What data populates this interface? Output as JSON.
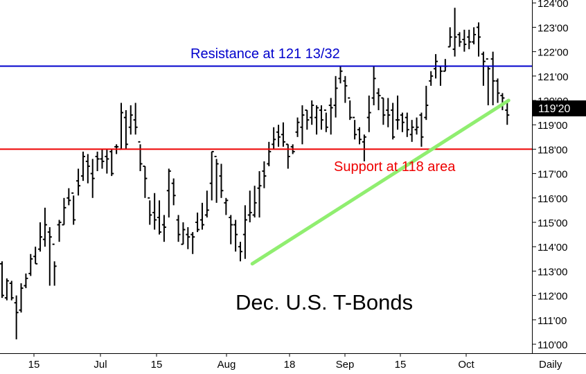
{
  "chart_data": {
    "type": "ohlc",
    "title": "Dec. U.S. T-Bonds",
    "frequency_label": "Daily",
    "last_price_label": "119'20",
    "last_price": 119.625,
    "y_tick_labels": [
      "110'00",
      "111'00",
      "112'00",
      "113'00",
      "114'00",
      "115'00",
      "116'00",
      "117'00",
      "118'00",
      "119'00",
      "120'00",
      "121'00",
      "122'00",
      "123'00",
      "124'00"
    ],
    "y_ticks": [
      110,
      111,
      112,
      113,
      114,
      115,
      116,
      117,
      118,
      119,
      120,
      121,
      122,
      123,
      124
    ],
    "ylim": [
      110,
      124
    ],
    "x_tick_labels": [
      "15",
      "Jul",
      "15",
      "Aug",
      "18",
      "Sep",
      "15",
      "Oct"
    ],
    "grid": false,
    "annotations": {
      "resistance": {
        "text": "Resistance at 121 13/32",
        "value": 121.40625,
        "color": "#0000cc"
      },
      "support": {
        "text": "Support at 118 area",
        "value": 118.0,
        "color": "#ee0000"
      },
      "trendline": {
        "color": "#90ee70",
        "from": 113.3,
        "to": 120.0
      }
    },
    "bars": [
      [
        113.3,
        112.0,
        113.4,
        111.9
      ],
      [
        111.9,
        112.6,
        112.7,
        111.8
      ],
      [
        112.5,
        111.9,
        112.6,
        111.8
      ],
      [
        111.7,
        111.3,
        112.0,
        110.2
      ],
      [
        111.4,
        112.3,
        112.5,
        111.3
      ],
      [
        112.4,
        112.7,
        112.9,
        112.3
      ],
      [
        112.9,
        113.5,
        113.7,
        112.8
      ],
      [
        113.6,
        113.3,
        114.0,
        113.3
      ],
      [
        113.9,
        114.4,
        115.0,
        113.8
      ],
      [
        114.3,
        114.9,
        115.6,
        114.0
      ],
      [
        114.6,
        114.4,
        114.8,
        112.4
      ],
      [
        114.1,
        113.2,
        113.4,
        112.4
      ],
      [
        114.9,
        115.0,
        115.1,
        114.2
      ],
      [
        114.9,
        115.6,
        116.0,
        114.9
      ],
      [
        116.0,
        115.9,
        116.4,
        115.7
      ],
      [
        116.2,
        115.1,
        116.1,
        114.9
      ],
      [
        116.7,
        116.5,
        117.2,
        116.1
      ],
      [
        116.9,
        117.7,
        117.9,
        116.7
      ],
      [
        117.5,
        117.3,
        117.8,
        116.6
      ],
      [
        117.0,
        116.8,
        117.6,
        116.0
      ],
      [
        117.7,
        117.6,
        117.9,
        117.1
      ],
      [
        117.6,
        117.5,
        118.0,
        117.2
      ],
      [
        117.7,
        117.6,
        118.0,
        117.0
      ],
      [
        117.9,
        117.0,
        118.0,
        116.9
      ],
      [
        118.1,
        118.1,
        118.2,
        117.8
      ],
      [
        118.0,
        119.5,
        119.9,
        118.0
      ],
      [
        119.3,
        118.2,
        119.6,
        118.0
      ],
      [
        118.9,
        119.4,
        119.8,
        118.6
      ],
      [
        119.2,
        118.9,
        119.9,
        118.6
      ],
      [
        118.3,
        117.4,
        118.2,
        117.1
      ],
      [
        117.3,
        116.8,
        117.3,
        116.0
      ],
      [
        116.0,
        115.3,
        115.9,
        114.9
      ],
      [
        115.4,
        115.1,
        116.2,
        114.7
      ],
      [
        115.2,
        114.6,
        115.9,
        114.5
      ],
      [
        114.9,
        114.8,
        115.3,
        114.2
      ],
      [
        116.3,
        117.1,
        117.2,
        115.2
      ],
      [
        116.6,
        116.1,
        116.8,
        115.7
      ],
      [
        115.1,
        114.5,
        115.3,
        114.2
      ],
      [
        114.1,
        114.7,
        115.0,
        114.1
      ],
      [
        114.5,
        114.4,
        114.8,
        113.9
      ],
      [
        114.5,
        114.4,
        114.6,
        113.7
      ],
      [
        115.0,
        114.7,
        115.4,
        114.6
      ],
      [
        115.1,
        114.9,
        115.8,
        114.7
      ],
      [
        115.3,
        115.5,
        116.3,
        115.2
      ],
      [
        116.6,
        117.9,
        117.9,
        115.9
      ],
      [
        117.7,
        117.4,
        117.6,
        115.8
      ],
      [
        116.9,
        116.3,
        117.4,
        116.0
      ],
      [
        115.8,
        115.9,
        116.0,
        115.3
      ],
      [
        115.2,
        114.9,
        115.3,
        114.1
      ],
      [
        114.9,
        114.5,
        115.1,
        113.8
      ],
      [
        114.0,
        113.8,
        114.2,
        113.4
      ],
      [
        114.5,
        115.1,
        115.7,
        113.5
      ],
      [
        115.3,
        115.4,
        116.3,
        115.0
      ],
      [
        115.3,
        115.8,
        116.5,
        115.2
      ],
      [
        116.4,
        116.5,
        117.1,
        115.2
      ],
      [
        117.1,
        116.9,
        117.5,
        116.4
      ],
      [
        117.4,
        117.9,
        118.3,
        117.3
      ],
      [
        118.2,
        118.4,
        118.9,
        118.0
      ],
      [
        118.7,
        118.5,
        119.0,
        118.1
      ],
      [
        118.6,
        118.3,
        119.1,
        118.1
      ],
      [
        118.2,
        117.7,
        118.2,
        117.2
      ],
      [
        118.1,
        117.9,
        118.2,
        117.8
      ],
      [
        118.7,
        119.1,
        119.3,
        118.5
      ],
      [
        118.9,
        119.4,
        119.8,
        118.2
      ],
      [
        119.6,
        119.2,
        119.6,
        118.8
      ],
      [
        119.3,
        119.8,
        120.0,
        119.0
      ],
      [
        119.3,
        119.7,
        119.8,
        118.6
      ],
      [
        119.6,
        119.2,
        119.8,
        118.8
      ],
      [
        119.6,
        118.9,
        119.5,
        118.7
      ],
      [
        119.8,
        119.7,
        120.1,
        118.6
      ],
      [
        119.8,
        120.5,
        121.0,
        119.3
      ],
      [
        120.9,
        121.2,
        121.4,
        120.7
      ],
      [
        120.8,
        120.6,
        121.0,
        119.9
      ],
      [
        120.1,
        119.3,
        120.0,
        119.2
      ],
      [
        119.3,
        118.6,
        119.2,
        118.4
      ],
      [
        118.8,
        118.4,
        118.9,
        118.2
      ],
      [
        118.3,
        118.5,
        118.6,
        117.5
      ],
      [
        119.3,
        119.5,
        120.2,
        118.7
      ],
      [
        120.1,
        120.9,
        121.4,
        119.8
      ],
      [
        120.3,
        120.2,
        120.5,
        119.6
      ],
      [
        120.1,
        119.4,
        120.1,
        119.0
      ],
      [
        119.6,
        119.4,
        120.1,
        118.9
      ],
      [
        119.6,
        118.5,
        119.9,
        118.4
      ],
      [
        119.2,
        119.2,
        120.2,
        118.8
      ],
      [
        119.4,
        119.1,
        119.5,
        118.7
      ],
      [
        119.3,
        118.8,
        119.5,
        118.5
      ],
      [
        118.6,
        118.9,
        119.2,
        118.3
      ],
      [
        118.8,
        118.9,
        119.3,
        118.6
      ],
      [
        119.4,
        118.5,
        119.5,
        118.1
      ],
      [
        119.3,
        119.8,
        120.6,
        119.2
      ],
      [
        120.8,
        121.0,
        121.2,
        120.6
      ],
      [
        121.3,
        121.6,
        121.9,
        120.9
      ],
      [
        121.4,
        121.2,
        121.4,
        120.6
      ],
      [
        121.2,
        121.4,
        121.7,
        121.2
      ],
      [
        122.2,
        122.6,
        123.0,
        122.2
      ],
      [
        122.1,
        122.6,
        123.8,
        121.8
      ],
      [
        122.7,
        122.4,
        122.8,
        122.2
      ],
      [
        122.5,
        122.3,
        122.9,
        122.0
      ],
      [
        122.6,
        122.4,
        122.9,
        122.1
      ],
      [
        122.4,
        122.7,
        123.0,
        122.3
      ],
      [
        123.0,
        122.6,
        123.2,
        121.8
      ],
      [
        121.9,
        121.6,
        122.0,
        120.6
      ],
      [
        121.7,
        121.3,
        121.4,
        119.8
      ],
      [
        121.7,
        120.8,
        122.0,
        119.8
      ],
      [
        120.8,
        120.3,
        120.9,
        119.9
      ],
      [
        120.2,
        120.1,
        120.3,
        119.6
      ],
      [
        119.6,
        119.4,
        119.9,
        119.0
      ]
    ]
  },
  "axis_x_label": "Daily"
}
